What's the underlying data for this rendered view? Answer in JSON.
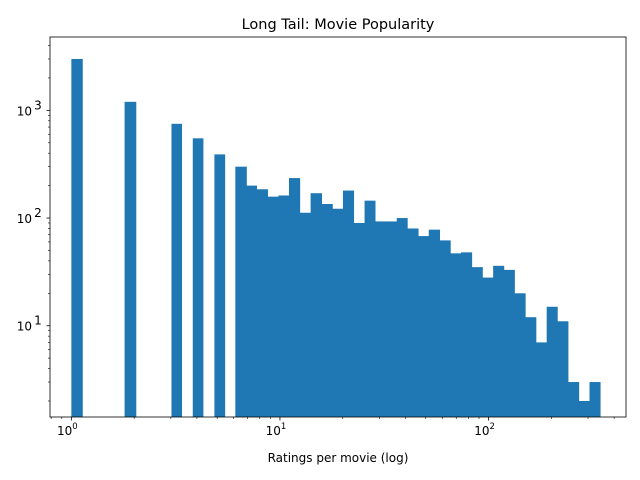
{
  "chart_data": {
    "type": "bar",
    "title": "Long Tail: Movie Popularity",
    "xlabel": "Ratings per movie (log)",
    "ylabel": "",
    "x_scale": "log",
    "y_scale": "log",
    "xlim": [
      0.79,
      456
    ],
    "ylim": [
      1.42,
      4800
    ],
    "grid": false,
    "bar_color": "#1f77b4",
    "x_ticks": [
      {
        "value": 1,
        "base": "10",
        "exp": "0"
      },
      {
        "value": 10,
        "base": "10",
        "exp": "1"
      },
      {
        "value": 100,
        "base": "10",
        "exp": "2"
      }
    ],
    "y_ticks": [
      {
        "value": 10,
        "base": "10",
        "exp": "1"
      },
      {
        "value": 100,
        "base": "10",
        "exp": "2"
      },
      {
        "value": 1000,
        "base": "10",
        "exp": "3"
      }
    ],
    "bins": [
      {
        "x0": 1.0,
        "x1": 1.13,
        "count": 3000
      },
      {
        "x0": 1.8,
        "x1": 2.04,
        "count": 1200
      },
      {
        "x0": 3.02,
        "x1": 3.38,
        "count": 750
      },
      {
        "x0": 3.82,
        "x1": 4.28,
        "count": 550
      },
      {
        "x0": 4.85,
        "x1": 5.44,
        "count": 390
      },
      {
        "x0": 6.11,
        "x1": 6.91,
        "count": 300
      },
      {
        "x0": 6.91,
        "x1": 7.73,
        "count": 200
      },
      {
        "x0": 7.73,
        "x1": 8.73,
        "count": 185
      },
      {
        "x0": 8.73,
        "x1": 9.83,
        "count": 158
      },
      {
        "x0": 9.83,
        "x1": 11.05,
        "count": 162
      },
      {
        "x0": 11.05,
        "x1": 12.45,
        "count": 235
      },
      {
        "x0": 12.45,
        "x1": 14.03,
        "count": 112
      },
      {
        "x0": 14.03,
        "x1": 15.85,
        "count": 170
      },
      {
        "x0": 15.85,
        "x1": 17.85,
        "count": 135
      },
      {
        "x0": 17.85,
        "x1": 20.05,
        "count": 122
      },
      {
        "x0": 20.05,
        "x1": 22.57,
        "count": 180
      },
      {
        "x0": 22.57,
        "x1": 25.45,
        "count": 90
      },
      {
        "x0": 25.45,
        "x1": 28.6,
        "count": 145
      },
      {
        "x0": 28.6,
        "x1": 32.2,
        "count": 93
      },
      {
        "x0": 32.2,
        "x1": 36.3,
        "count": 93
      },
      {
        "x0": 36.3,
        "x1": 40.8,
        "count": 100
      },
      {
        "x0": 40.8,
        "x1": 46.0,
        "count": 80
      },
      {
        "x0": 46.0,
        "x1": 51.7,
        "count": 68
      },
      {
        "x0": 51.7,
        "x1": 58.3,
        "count": 78
      },
      {
        "x0": 58.3,
        "x1": 65.6,
        "count": 62
      },
      {
        "x0": 65.6,
        "x1": 73.8,
        "count": 47
      },
      {
        "x0": 73.8,
        "x1": 83.1,
        "count": 48
      },
      {
        "x0": 83.1,
        "x1": 93.5,
        "count": 35
      },
      {
        "x0": 93.5,
        "x1": 105.2,
        "count": 28
      },
      {
        "x0": 105.2,
        "x1": 118.4,
        "count": 36
      },
      {
        "x0": 118.4,
        "x1": 133.2,
        "count": 33
      },
      {
        "x0": 133.2,
        "x1": 150.0,
        "count": 20
      },
      {
        "x0": 150.0,
        "x1": 168.8,
        "count": 12
      },
      {
        "x0": 168.8,
        "x1": 190.0,
        "count": 7
      },
      {
        "x0": 190.0,
        "x1": 213.8,
        "count": 15
      },
      {
        "x0": 213.8,
        "x1": 240.6,
        "count": 11
      },
      {
        "x0": 240.6,
        "x1": 270.8,
        "count": 3
      },
      {
        "x0": 270.8,
        "x1": 304.8,
        "count": 2
      },
      {
        "x0": 304.8,
        "x1": 343.0,
        "count": 3
      }
    ]
  }
}
